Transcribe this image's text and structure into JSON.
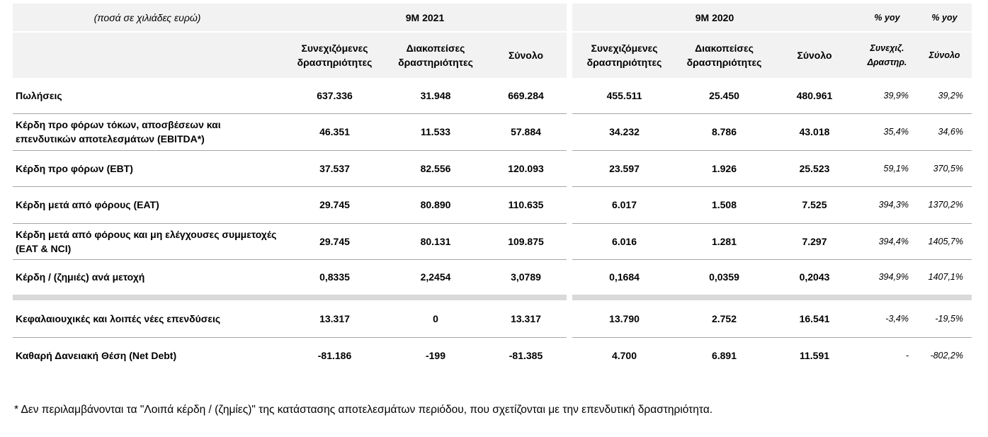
{
  "header": {
    "note": "(ποσά σε χιλιάδες ευρώ)",
    "period_2021": "9M 2021",
    "period_2020": "9M 2020",
    "yoy_1": "% yoy",
    "yoy_2": "% yoy"
  },
  "columns": [
    "Συνεχιζόμενες δραστηριότητες",
    "Διακοπείσες δραστηριότητες",
    "Σύνολο",
    "Συνεχιζόμενες δραστηριότητες",
    "Διακοπείσες δραστηριότητες",
    "Σύνολο",
    "Συνεχιζ. Δραστηρ.",
    "Σύνολο"
  ],
  "rows": [
    {
      "label": "Πωλήσεις",
      "values": [
        "637.336",
        "31.948",
        "669.284",
        "455.511",
        "25.450",
        "480.961",
        "39,9%",
        "39,2%"
      ]
    },
    {
      "label": "Κέρδη προ φόρων τόκων, αποσβέσεων και επενδυτικών αποτελεσμάτων (EBITDA*)",
      "values": [
        "46.351",
        "11.533",
        "57.884",
        "34.232",
        "8.786",
        "43.018",
        "35,4%",
        "34,6%"
      ]
    },
    {
      "label": "Κέρδη προ φόρων (EBT)",
      "values": [
        "37.537",
        "82.556",
        "120.093",
        "23.597",
        "1.926",
        "25.523",
        "59,1%",
        "370,5%"
      ]
    },
    {
      "label": "Κέρδη μετά από φόρους (EAT)",
      "values": [
        "29.745",
        "80.890",
        "110.635",
        "6.017",
        "1.508",
        "7.525",
        "394,3%",
        "1370,2%"
      ]
    },
    {
      "label": "Κέρδη μετά από φόρους και μη ελέγχουσες συμμετοχές (EAT & NCI)",
      "values": [
        "29.745",
        "80.131",
        "109.875",
        "6.016",
        "1.281",
        "7.297",
        "394,4%",
        "1405,7%"
      ]
    },
    {
      "label": "Κέρδη / (ζημιές) ανά μετοχή",
      "values": [
        "0,8335",
        "2,2454",
        "3,0789",
        "0,1684",
        "0,0359",
        "0,2043",
        "394,9%",
        "1407,1%"
      ]
    },
    {
      "label": "Κεφαλαιουχικές και λοιπές νέες επενδύσεις",
      "values": [
        "13.317",
        "0",
        "13.317",
        "13.790",
        "2.752",
        "16.541",
        "-3,4%",
        "-19,5%"
      ]
    },
    {
      "label": "Καθαρή Δανειακή Θέση (Net Debt)",
      "values": [
        "-81.186",
        "-199",
        "-81.385",
        "4.700",
        "6.891",
        "11.591",
        "-",
        "-802,2%"
      ]
    }
  ],
  "footnote": "* Δεν περιλαμβάνονται τα \"Λοιπά κέρδη / (ζημίες)\" της κατάστασης αποτελεσμάτων περιόδου, που σχετίζονται με την επενδυτική δραστηριότητα."
}
